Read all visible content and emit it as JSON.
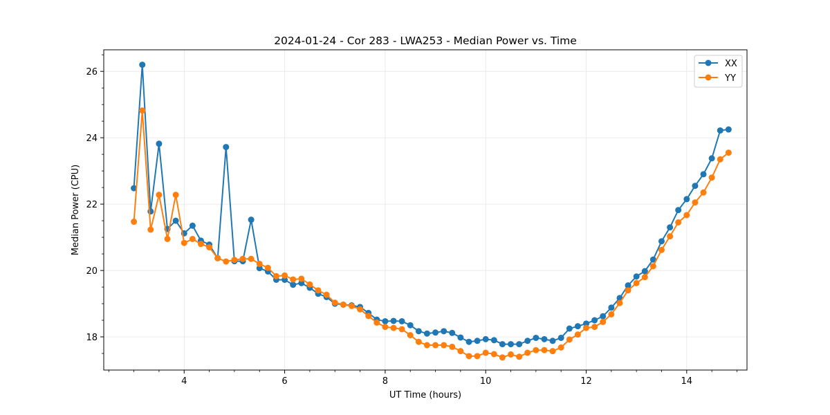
{
  "chart_data": {
    "type": "line",
    "title": "2024-01-24 - Cor 283 - LWA253 - Median Power vs. Time",
    "xlabel": "UT Time (hours)",
    "ylabel": "Median Power (CPU)",
    "xlim": [
      2.4,
      15.2
    ],
    "ylim": [
      17.0,
      26.65
    ],
    "xticks": [
      4,
      6,
      8,
      10,
      12,
      14
    ],
    "xtick_labels": [
      "4",
      "6",
      "8",
      "10",
      "12",
      "14"
    ],
    "yticks": [
      18,
      20,
      22,
      24,
      26
    ],
    "ytick_labels": [
      "18",
      "20",
      "22",
      "24",
      "26"
    ],
    "grid": true,
    "legend_position": "top-right",
    "x": [
      3.0,
      3.167,
      3.333,
      3.5,
      3.667,
      3.833,
      4.0,
      4.167,
      4.333,
      4.5,
      4.667,
      4.833,
      5.0,
      5.167,
      5.333,
      5.5,
      5.667,
      5.833,
      6.0,
      6.167,
      6.333,
      6.5,
      6.667,
      6.833,
      7.0,
      7.167,
      7.333,
      7.5,
      7.667,
      7.833,
      8.0,
      8.167,
      8.333,
      8.5,
      8.667,
      8.833,
      9.0,
      9.167,
      9.333,
      9.5,
      9.667,
      9.833,
      10.0,
      10.167,
      10.333,
      10.5,
      10.667,
      10.833,
      11.0,
      11.167,
      11.333,
      11.5,
      11.667,
      11.833,
      12.0,
      12.167,
      12.333,
      12.5,
      12.667,
      12.833,
      13.0,
      13.167,
      13.333,
      13.5,
      13.667,
      13.833,
      14.0,
      14.167,
      14.333,
      14.5,
      14.667,
      14.833
    ],
    "series": [
      {
        "name": "XX",
        "color": "#1f77b4",
        "values": [
          22.48,
          26.2,
          21.78,
          23.82,
          21.25,
          21.5,
          21.12,
          21.35,
          20.9,
          20.78,
          20.37,
          23.72,
          20.28,
          20.28,
          21.53,
          20.07,
          19.97,
          19.72,
          19.72,
          19.57,
          19.62,
          19.48,
          19.3,
          19.2,
          19.0,
          18.97,
          18.95,
          18.9,
          18.72,
          18.52,
          18.47,
          18.48,
          18.47,
          18.35,
          18.17,
          18.1,
          18.13,
          18.17,
          18.12,
          17.98,
          17.85,
          17.88,
          17.93,
          17.9,
          17.78,
          17.78,
          17.78,
          17.88,
          17.97,
          17.93,
          17.88,
          17.97,
          18.25,
          18.32,
          18.4,
          18.5,
          18.62,
          18.88,
          19.17,
          19.55,
          19.82,
          19.98,
          20.33,
          20.88,
          21.3,
          21.82,
          22.15,
          22.55,
          22.9,
          23.38,
          24.22,
          24.25
        ]
      },
      {
        "name": "YY",
        "color": "#ff7f0e",
        "values": [
          21.47,
          24.82,
          21.23,
          22.28,
          20.95,
          22.28,
          20.83,
          20.95,
          20.8,
          20.7,
          20.37,
          20.27,
          20.32,
          20.35,
          20.35,
          20.2,
          20.08,
          19.83,
          19.85,
          19.73,
          19.75,
          19.58,
          19.4,
          19.27,
          19.03,
          18.97,
          18.93,
          18.83,
          18.63,
          18.43,
          18.3,
          18.27,
          18.23,
          18.05,
          17.85,
          17.75,
          17.75,
          17.75,
          17.7,
          17.57,
          17.42,
          17.42,
          17.52,
          17.48,
          17.38,
          17.47,
          17.4,
          17.52,
          17.6,
          17.6,
          17.57,
          17.68,
          17.92,
          18.07,
          18.27,
          18.3,
          18.45,
          18.68,
          19.02,
          19.4,
          19.62,
          19.8,
          20.13,
          20.62,
          21.03,
          21.45,
          21.67,
          22.05,
          22.35,
          22.8,
          23.35,
          23.55
        ]
      }
    ]
  }
}
